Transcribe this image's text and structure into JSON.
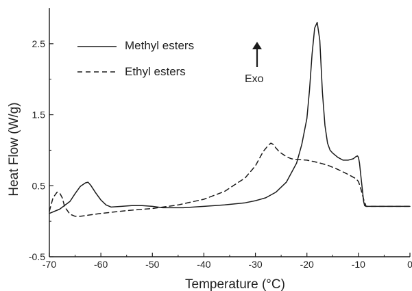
{
  "chart_data": {
    "type": "line",
    "title": "",
    "xlabel": "Temperature (°C)",
    "ylabel": "Heat Flow (W/g)",
    "xlim": [
      -70,
      0
    ],
    "ylim": [
      -0.5,
      3.0
    ],
    "x_ticks": [
      -70,
      -60,
      -50,
      -40,
      -30,
      -20,
      -10,
      0
    ],
    "x_tick_labels": [
      "-70",
      "-60",
      "-50",
      "-40",
      "-30",
      "-20",
      "-10",
      "0"
    ],
    "y_ticks": [
      -0.5,
      0.5,
      1.5,
      2.5
    ],
    "y_tick_labels": [
      "-0.5",
      "0.5",
      "1.5",
      "2.5"
    ],
    "grid": false,
    "legend_position": "top-left",
    "series": [
      {
        "name": "Methyl esters",
        "style": "solid",
        "color": "#1a1a1a",
        "x": [
          -70,
          -68,
          -66,
          -65,
          -64,
          -63,
          -62.5,
          -62,
          -61,
          -60,
          -59,
          -58,
          -56,
          -54,
          -52,
          -50,
          -48,
          -46,
          -44,
          -40,
          -36,
          -32,
          -30,
          -28,
          -26,
          -24,
          -22,
          -21,
          -20,
          -19.5,
          -19,
          -18.5,
          -18,
          -17.5,
          -17,
          -16.5,
          -16,
          -15.5,
          -15,
          -14,
          -13,
          -12,
          -11,
          -10.5,
          -10.2,
          -10,
          -9.8,
          -9.5,
          -9.2,
          -9,
          -8.8,
          -8.5,
          -8,
          -6,
          -4,
          -2,
          0
        ],
        "y": [
          0.11,
          0.17,
          0.28,
          0.39,
          0.49,
          0.54,
          0.55,
          0.51,
          0.4,
          0.3,
          0.23,
          0.2,
          0.21,
          0.22,
          0.22,
          0.21,
          0.19,
          0.19,
          0.19,
          0.21,
          0.23,
          0.26,
          0.29,
          0.33,
          0.41,
          0.55,
          0.82,
          1.08,
          1.45,
          1.85,
          2.35,
          2.72,
          2.8,
          2.55,
          1.82,
          1.35,
          1.1,
          1.0,
          0.96,
          0.9,
          0.86,
          0.86,
          0.88,
          0.91,
          0.92,
          0.9,
          0.82,
          0.62,
          0.42,
          0.28,
          0.22,
          0.21,
          0.21,
          0.21,
          0.21,
          0.21,
          0.21
        ]
      },
      {
        "name": "Ethyl esters",
        "style": "dashed",
        "color": "#1a1a1a",
        "x": [
          -70,
          -69.3,
          -68.5,
          -68,
          -67.5,
          -67,
          -66,
          -65,
          -64,
          -62,
          -60,
          -55,
          -50,
          -45,
          -40,
          -36,
          -32,
          -30,
          -28.5,
          -27.5,
          -27,
          -26.5,
          -26,
          -25.5,
          -25,
          -24,
          -23,
          -22,
          -20,
          -18,
          -16,
          -14,
          -12,
          -11,
          -10.5,
          -10,
          -9.5,
          -9,
          -8.5,
          -8,
          -6,
          -4,
          -2,
          0
        ],
        "y": [
          0.14,
          0.33,
          0.41,
          0.4,
          0.33,
          0.2,
          0.1,
          0.07,
          0.07,
          0.09,
          0.11,
          0.15,
          0.18,
          0.23,
          0.31,
          0.42,
          0.61,
          0.78,
          0.98,
          1.07,
          1.1,
          1.08,
          1.03,
          0.99,
          0.96,
          0.91,
          0.88,
          0.87,
          0.86,
          0.83,
          0.79,
          0.73,
          0.66,
          0.62,
          0.6,
          0.56,
          0.45,
          0.31,
          0.21,
          0.21,
          0.21,
          0.21,
          0.21,
          0.21
        ]
      }
    ],
    "annotations": [
      {
        "text": "Exo",
        "arrow": "up"
      }
    ]
  }
}
